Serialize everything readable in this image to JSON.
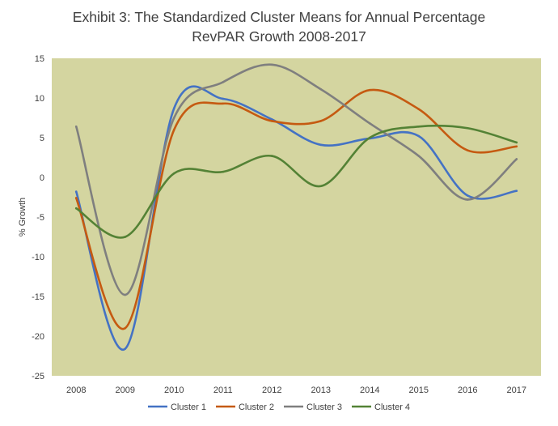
{
  "chart_data": {
    "type": "line",
    "title_lines": [
      "Exhibit 3: The Standardized Cluster Means for Annual Percentage",
      "RevPAR Growth 2008-2017"
    ],
    "xlabel": "",
    "ylabel": "% Growth",
    "categories": [
      "2008",
      "2009",
      "2010",
      "2011",
      "2012",
      "2013",
      "2014",
      "2015",
      "2016",
      "2017"
    ],
    "ylim": [
      -25,
      15
    ],
    "yticks": [
      15,
      10,
      5,
      0,
      -5,
      -10,
      -15,
      -20,
      -25
    ],
    "grid": false,
    "smooth": true,
    "legend_position": "bottom",
    "plot_background": "#d4d5a0",
    "series": [
      {
        "name": "Cluster 1",
        "color": "#4472c4",
        "values": [
          -1.8,
          -21.6,
          8.7,
          9.9,
          7.3,
          4.1,
          4.9,
          5.2,
          -2.3,
          -1.7
        ]
      },
      {
        "name": "Cluster 2",
        "color": "#c55a11",
        "values": [
          -2.6,
          -19.0,
          6.0,
          9.3,
          7.1,
          7.1,
          11.0,
          8.6,
          3.4,
          3.9
        ]
      },
      {
        "name": "Cluster 3",
        "color": "#7f7f7f",
        "values": [
          6.4,
          -14.8,
          7.5,
          12.0,
          14.2,
          11.1,
          6.8,
          2.7,
          -2.8,
          2.3
        ]
      },
      {
        "name": "Cluster 4",
        "color": "#548235",
        "values": [
          -3.9,
          -7.5,
          0.5,
          0.7,
          2.7,
          -1.1,
          5.0,
          6.4,
          6.2,
          4.4
        ]
      }
    ]
  }
}
